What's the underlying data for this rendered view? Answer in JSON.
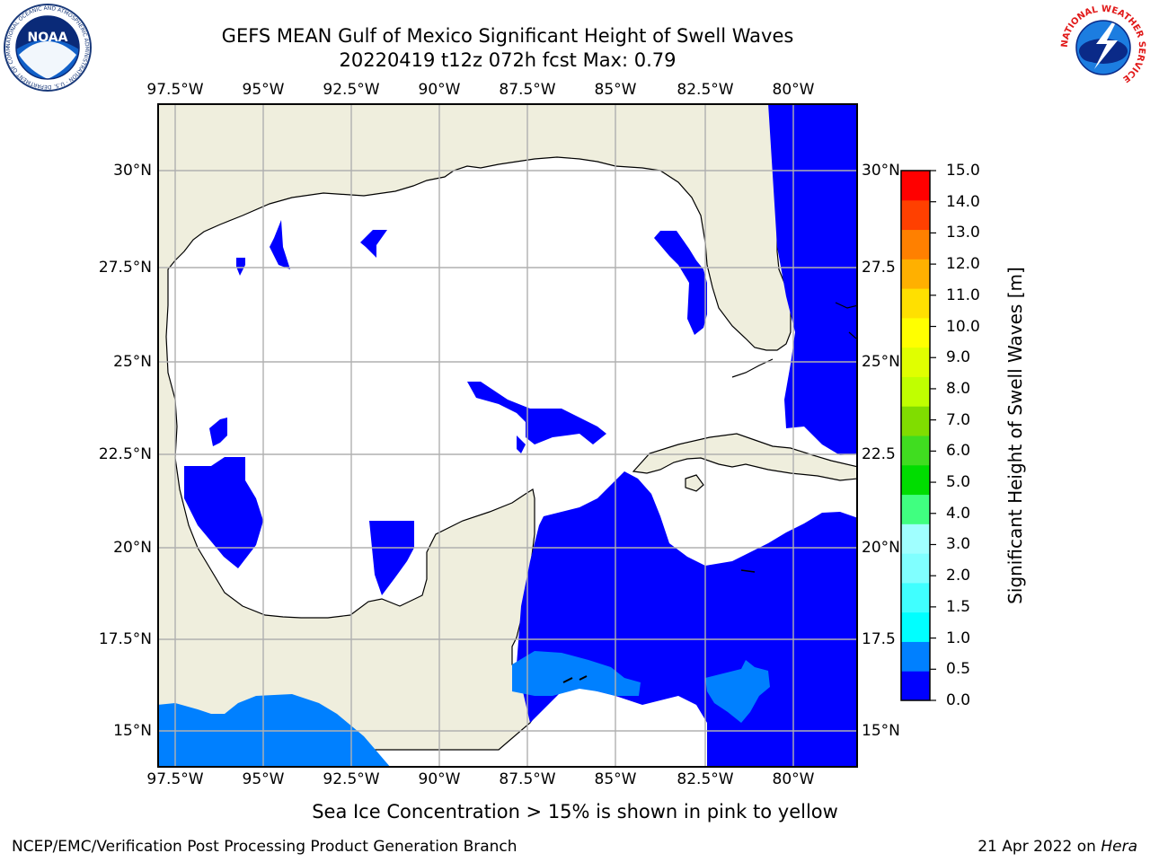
{
  "title": {
    "line1": "GEFS MEAN Gulf of Mexico Significant Height of Swell Waves",
    "line2": "20220419 t12z 072h fcst   Max: 0.79"
  },
  "map": {
    "lon_labels": [
      "97.5°W",
      "95°W",
      "92.5°W",
      "90°W",
      "87.5°W",
      "85°W",
      "82.5°W",
      "80°W"
    ],
    "lat_labels": [
      "30°N",
      "27.5°N",
      "25°N",
      "22.5°N",
      "20°N",
      "17.5°N",
      "15°N"
    ],
    "lat_labels_right": [
      "30°N",
      "27.5",
      "25°N",
      "22.5",
      "20°N",
      "17.5",
      "15°N"
    ],
    "colors": {
      "land": "#efeedd",
      "ocean_no_swell": "#ffffff",
      "swell_0_to_0_5": "#0000ff",
      "swell_0_5_to_1_0": "#0080ff",
      "grid": "#b0b0b0"
    }
  },
  "colorbar": {
    "label": "Significant Height of Swell Waves [m]",
    "ticks": [
      "15.0",
      "14.0",
      "13.0",
      "12.0",
      "11.0",
      "10.0",
      "9.0",
      "8.0",
      "7.0",
      "6.0",
      "5.0",
      "4.0",
      "3.0",
      "2.0",
      "1.5",
      "1.0",
      "0.5",
      "0.0"
    ],
    "colors_bottom_to_top": [
      "#0000ff",
      "#0080ff",
      "#00ffff",
      "#40ffff",
      "#80ffff",
      "#a0ffff",
      "#40ff80",
      "#00dd00",
      "#40dd20",
      "#80dd00",
      "#c0ff00",
      "#e0ff00",
      "#ffff00",
      "#ffe000",
      "#ffb000",
      "#ff8000",
      "#ff4000",
      "#ff0000"
    ]
  },
  "footer": {
    "sea_ice_note": "Sea Ice Concentration > 15% is shown in pink to yellow",
    "branch": "NCEP/EMC/Verification Post Processing Product Generation Branch",
    "date": "21 Apr 2022 on",
    "host": "Hera"
  },
  "logos": {
    "noaa": {
      "text": "NOAA",
      "ring_text": "NATIONAL OCEANIC AND ATMOSPHERIC ADMINISTRATION · U.S. DEPARTMENT OF COMMERCE"
    },
    "nws": {
      "ring_text": "NATIONAL WEATHER SERVICE"
    }
  }
}
